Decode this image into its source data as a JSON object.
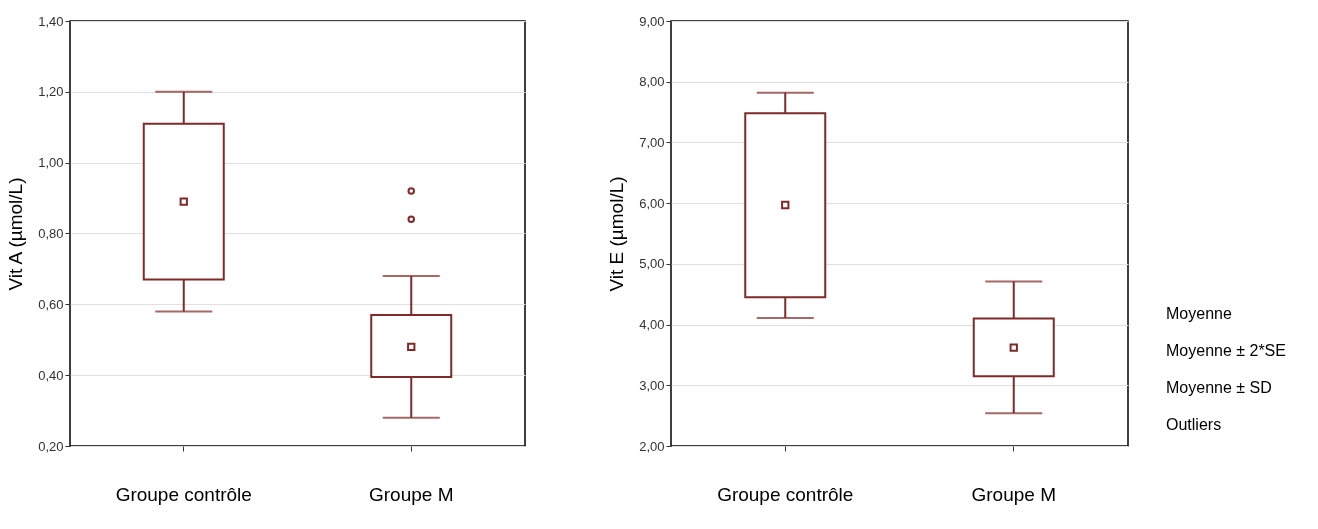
{
  "chart_data": [
    {
      "type": "box",
      "ylabel": "Vit A (µmol/L)",
      "categories": [
        "Groupe contrôle",
        "Groupe M"
      ],
      "grid": "y",
      "ylim": [
        0.2,
        1.4
      ],
      "yticks": [
        {
          "value": 0.2,
          "label": "0,20"
        },
        {
          "value": 0.4,
          "label": "0,40"
        },
        {
          "value": 0.6,
          "label": "0,60"
        },
        {
          "value": 0.8,
          "label": "0,80"
        },
        {
          "value": 1.0,
          "label": "1,00"
        },
        {
          "value": 1.2,
          "label": "1,20"
        },
        {
          "value": 1.4,
          "label": "1,40"
        }
      ],
      "series": [
        {
          "color": "#7f2a2a",
          "boxes": [
            {
              "low": 0.58,
              "q1": 0.67,
              "mean": 0.89,
              "q3": 1.11,
              "high": 1.2
            },
            {
              "low": 0.28,
              "q1": 0.395,
              "mean": 0.48,
              "q3": 0.57,
              "high": 0.68,
              "outliers": [
                0.92,
                0.84
              ]
            }
          ]
        }
      ]
    },
    {
      "type": "box",
      "ylabel": "Vit E (µmol/L)",
      "categories": [
        "Groupe contrôle",
        "Groupe M"
      ],
      "grid": "y",
      "ylim": [
        2,
        9
      ],
      "yticks": [
        {
          "value": 2,
          "label": "2,00"
        },
        {
          "value": 3,
          "label": "3,00"
        },
        {
          "value": 4,
          "label": "4,00"
        },
        {
          "value": 5,
          "label": "5,00"
        },
        {
          "value": 6,
          "label": "6,00"
        },
        {
          "value": 7,
          "label": "7,00"
        },
        {
          "value": 8,
          "label": "8,00"
        },
        {
          "value": 9,
          "label": "9,00"
        }
      ],
      "series": [
        {
          "color": "#7f2a2a",
          "boxes": [
            {
              "low": 4.11,
              "q1": 4.45,
              "mean": 5.97,
              "q3": 7.48,
              "high": 7.82
            },
            {
              "low": 2.54,
              "q1": 3.15,
              "mean": 3.62,
              "q3": 4.1,
              "high": 4.71
            }
          ]
        }
      ],
      "annotations": [
        "Moyenne",
        "Moyenne ± 2*SE",
        "Moyenne ± SD",
        "Outliers"
      ]
    }
  ]
}
